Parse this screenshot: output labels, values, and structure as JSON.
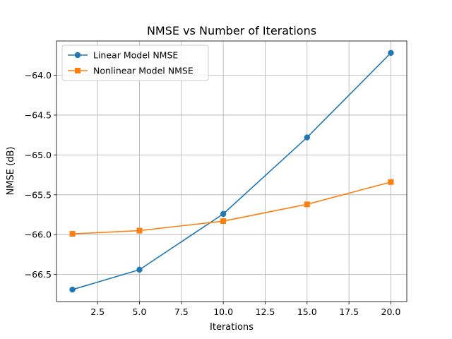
{
  "chart_data": {
    "type": "line",
    "title": "NMSE vs Number of Iterations",
    "xlabel": "Iterations",
    "ylabel": "NMSE (dB)",
    "x": [
      1,
      5,
      10,
      15,
      20
    ],
    "series": [
      {
        "name": "Linear Model NMSE",
        "values": [
          -66.69,
          -66.44,
          -65.74,
          -64.78,
          -63.72
        ],
        "color": "#1f77b4",
        "marker": "circle"
      },
      {
        "name": "Nonlinear Model NMSE",
        "values": [
          -65.99,
          -65.95,
          -65.83,
          -65.62,
          -65.34
        ],
        "color": "#ff7f0e",
        "marker": "square"
      }
    ],
    "xlim": [
      0.05,
      20.95
    ],
    "ylim": [
      -66.84,
      -63.57
    ],
    "xticks": [
      2.5,
      5.0,
      7.5,
      10.0,
      12.5,
      15.0,
      17.5,
      20.0
    ],
    "xtick_labels": [
      "2.5",
      "5.0",
      "7.5",
      "10.0",
      "12.5",
      "15.0",
      "17.5",
      "20.0"
    ],
    "yticks": [
      -66.5,
      -66.0,
      -65.5,
      -65.0,
      -64.5,
      -64.0
    ],
    "ytick_labels": [
      "−66.5",
      "−66.0",
      "−65.5",
      "−65.0",
      "−64.5",
      "−64.0"
    ],
    "grid": true,
    "legend_position": "top-left"
  }
}
